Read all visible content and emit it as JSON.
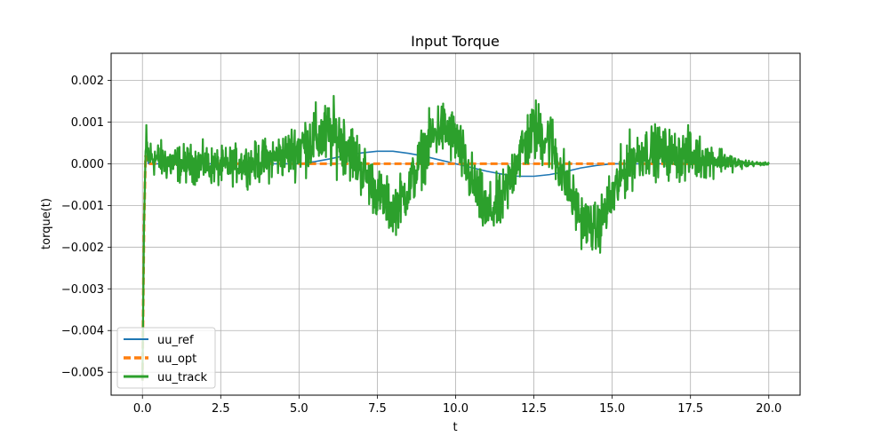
{
  "chart_data": {
    "type": "line",
    "title": "Input Torque",
    "xlabel": "t",
    "ylabel": "torque(t)",
    "xlim": [
      -1.0,
      21.0
    ],
    "ylim": [
      -0.00555,
      0.00265
    ],
    "xticks": [
      0.0,
      2.5,
      5.0,
      7.5,
      10.0,
      12.5,
      15.0,
      17.5,
      20.0
    ],
    "xtick_labels": [
      "0.0",
      "2.5",
      "5.0",
      "7.5",
      "10.0",
      "12.5",
      "15.0",
      "17.5",
      "20.0"
    ],
    "yticks": [
      -0.005,
      -0.004,
      -0.003,
      -0.002,
      -0.001,
      0.0,
      0.001,
      0.002
    ],
    "ytick_labels": [
      "−0.005",
      "−0.004",
      "−0.003",
      "−0.002",
      "−0.001",
      "0.000",
      "0.001",
      "0.002"
    ],
    "grid": true,
    "legend_position": "lower-left",
    "series": [
      {
        "name": "uu_ref",
        "color": "#1f77b4",
        "style": "solid",
        "x": [
          0.0,
          0.05,
          0.1,
          0.2,
          0.5,
          1.0,
          2.0,
          3.0,
          4.0,
          5.0,
          5.5,
          6.0,
          6.5,
          7.0,
          7.5,
          8.0,
          8.5,
          9.0,
          9.5,
          10.0,
          10.5,
          11.0,
          11.5,
          12.0,
          12.5,
          13.0,
          13.5,
          14.0,
          14.5,
          15.0,
          16.0,
          17.0,
          18.0,
          19.0,
          20.0
        ],
        "y": [
          -0.0052,
          -0.0015,
          0.0002,
          0.0,
          0.0,
          0.0,
          0.0,
          0.0,
          0.0,
          0.0,
          5e-05,
          0.00012,
          0.0002,
          0.00026,
          0.0003,
          0.0003,
          0.00025,
          0.00018,
          9e-05,
          0.0,
          -9e-05,
          -0.00018,
          -0.00025,
          -0.0003,
          -0.0003,
          -0.00026,
          -0.00019,
          -0.0001,
          -4e-05,
          0.0,
          0.0,
          0.0,
          0.0,
          0.0,
          0.0
        ]
      },
      {
        "name": "uu_opt",
        "color": "#ff7f0e",
        "style": "dashed",
        "x": [
          0.0,
          0.05,
          0.1,
          0.2,
          1.0,
          5.0,
          10.0,
          15.0,
          20.0
        ],
        "y": [
          -0.0052,
          -0.0015,
          0.0002,
          0.0,
          0.0,
          0.0,
          0.0,
          0.0,
          0.0
        ]
      },
      {
        "name": "uu_track",
        "color": "#2ca02c",
        "style": "solid",
        "x": [
          0.0,
          0.05,
          0.1,
          0.2,
          0.5,
          1.0,
          1.5,
          2.0,
          2.5,
          3.0,
          3.5,
          4.0,
          4.5,
          5.0,
          5.5,
          6.0,
          6.5,
          7.0,
          7.5,
          8.0,
          8.5,
          9.0,
          9.5,
          10.0,
          10.5,
          11.0,
          11.5,
          12.0,
          12.5,
          13.0,
          13.5,
          14.0,
          14.5,
          15.0,
          15.5,
          16.0,
          16.5,
          17.0,
          17.5,
          18.0,
          18.5,
          19.0,
          19.5,
          20.0
        ],
        "y": [
          -0.0052,
          -0.0015,
          0.0003,
          0.0002,
          0.0001,
          0.0,
          0.0,
          0.0,
          -0.0001,
          0.0,
          0.0,
          0.0001,
          0.0002,
          0.0004,
          0.0006,
          0.0007,
          0.0005,
          -0.0001,
          -0.0007,
          -0.0011,
          -0.0006,
          0.0003,
          0.0009,
          0.0006,
          -0.0004,
          -0.0012,
          -0.0009,
          0.0002,
          0.0008,
          0.0006,
          -0.0004,
          -0.0013,
          -0.0016,
          -0.0008,
          0.0,
          0.0003,
          0.0003,
          0.0002,
          0.0002,
          0.0001,
          0.0001,
          0.0,
          0.0,
          0.0
        ],
        "noise_amplitude": [
          0.0,
          0.0,
          0.0012,
          0.0006,
          0.0006,
          0.0006,
          0.0006,
          0.0006,
          0.0006,
          0.0006,
          0.0006,
          0.0007,
          0.0007,
          0.0009,
          0.001,
          0.0011,
          0.001,
          0.0009,
          0.0008,
          0.0008,
          0.0008,
          0.0009,
          0.0009,
          0.0009,
          0.0009,
          0.0009,
          0.0009,
          0.0009,
          0.001,
          0.001,
          0.0009,
          0.0008,
          0.0008,
          0.0009,
          0.0009,
          0.0008,
          0.0008,
          0.0008,
          0.0008,
          0.0006,
          0.0004,
          0.0002,
          8e-05,
          3e-05
        ]
      }
    ]
  }
}
